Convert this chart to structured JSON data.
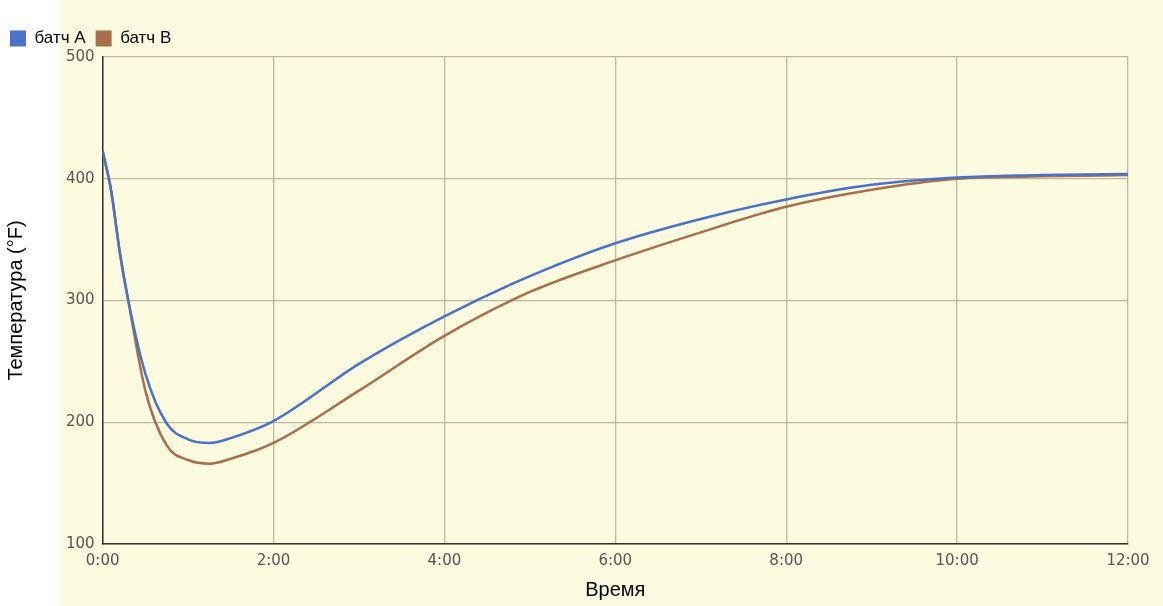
{
  "chart_data": {
    "type": "line",
    "xlabel": "Время",
    "ylabel": "Температура (°F)",
    "x": [
      0,
      0.1,
      0.2,
      0.3,
      0.5,
      0.75,
      1,
      1.25,
      1.5,
      2,
      3,
      4,
      5,
      6,
      7,
      8,
      9,
      10,
      11,
      12
    ],
    "series": [
      {
        "name": "батч A",
        "color": "#4a72c8",
        "values": [
          423,
          390,
          340,
          300,
          240,
          199,
          186,
          183,
          187,
          201,
          248,
          287,
          320,
          347,
          367,
          383,
          395,
          401,
          403,
          404
        ]
      },
      {
        "name": "батч B",
        "color": "#a8704a",
        "values": [
          423,
          390,
          340,
          300,
          226,
          181,
          169,
          166,
          170,
          183,
          226,
          271,
          307,
          333,
          356,
          377,
          391,
          400,
          402,
          403
        ]
      }
    ],
    "xlim": [
      0,
      12
    ],
    "xticks": [
      {
        "value": 0,
        "label": "0:00"
      },
      {
        "value": 2,
        "label": "2:00"
      },
      {
        "value": 4,
        "label": "4:00"
      },
      {
        "value": 6,
        "label": "6:00"
      },
      {
        "value": 8,
        "label": "8:00"
      },
      {
        "value": 10,
        "label": "10:00"
      },
      {
        "value": 12,
        "label": "12:00"
      }
    ],
    "ylim": [
      100,
      500
    ],
    "yticks": [
      100,
      200,
      300,
      400,
      500
    ],
    "grid": true,
    "legend": "top left",
    "marker": "none",
    "line_style": "solid"
  }
}
